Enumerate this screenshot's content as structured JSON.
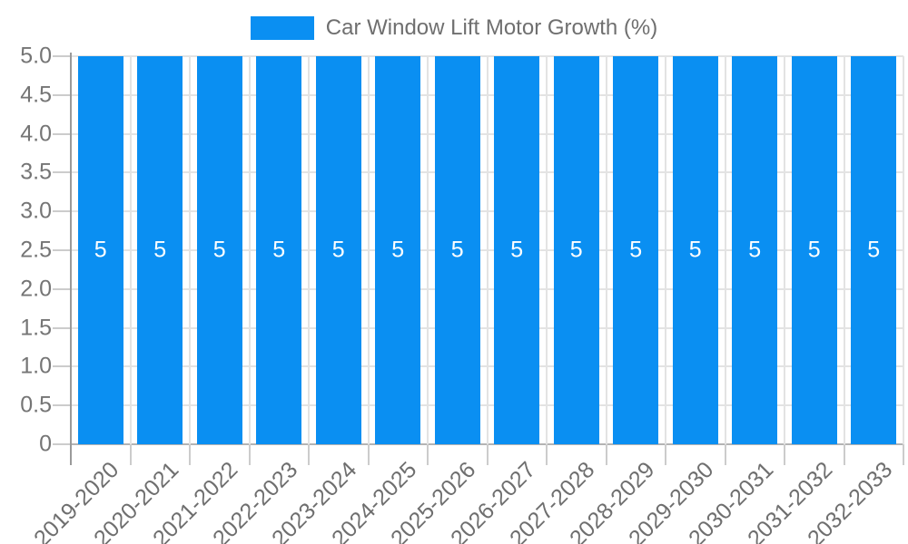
{
  "legend": {
    "position": "top",
    "items": [
      {
        "label": "Car Window Lift Motor Growth (%)",
        "swatch_color": "#0a8ff2"
      }
    ]
  },
  "chart_data": {
    "type": "bar",
    "title": "",
    "xlabel": "",
    "ylabel": "",
    "categories": [
      "2019-2020",
      "2020-2021",
      "2021-2022",
      "2022-2023",
      "2023-2024",
      "2024-2025",
      "2025-2026",
      "2026-2027",
      "2027-2028",
      "2028-2029",
      "2029-2030",
      "2030-2031",
      "2031-2032",
      "2032-2033"
    ],
    "series": [
      {
        "name": "Car Window Lift Motor Growth (%)",
        "values": [
          5,
          5,
          5,
          5,
          5,
          5,
          5,
          5,
          5,
          5,
          5,
          5,
          5,
          5
        ],
        "color": "#0a8ff2"
      }
    ],
    "bar_value_labels": [
      "5",
      "5",
      "5",
      "5",
      "5",
      "5",
      "5",
      "5",
      "5",
      "5",
      "5",
      "5",
      "5",
      "5"
    ],
    "ylim": [
      0,
      5
    ],
    "ytick_values": [
      0,
      0.5,
      1,
      1.5,
      2,
      2.5,
      3,
      3.5,
      4,
      4.5,
      5
    ],
    "ytick_labels": [
      "0",
      "0.5",
      "1.0",
      "1.5",
      "2.0",
      "2.5",
      "3.0",
      "3.5",
      "4.0",
      "4.5",
      "5.0"
    ],
    "grid": true,
    "x_labels_rotation_deg": -45,
    "legend_position": "top",
    "colors": {
      "bar": "#0a8ff2",
      "bar_value_text": "#ffffff",
      "axis_text": "#757575",
      "grid_line": "#e3e3e3",
      "axis_line": "#9a9a9a",
      "baseline": "#b4b4b4",
      "tick": "#cccccc",
      "background": "#ffffff"
    }
  }
}
